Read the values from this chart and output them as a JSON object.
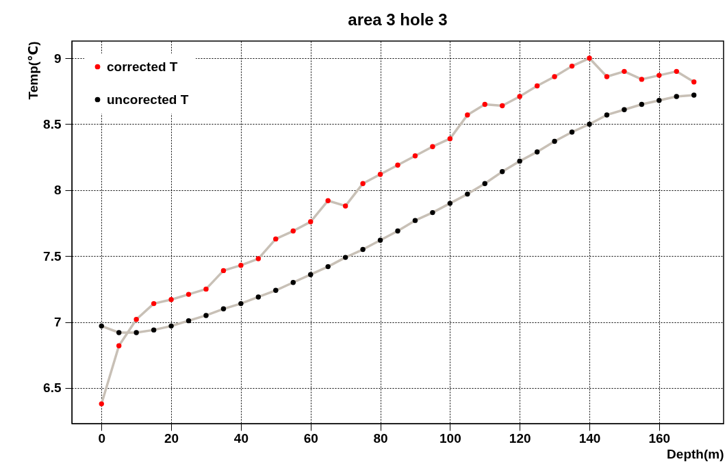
{
  "chart_data": {
    "type": "line",
    "title": "area 3 hole 3",
    "xlabel": "Depth(m)",
    "ylabel": "Temp(℃)",
    "x": [
      0,
      5,
      10,
      15,
      20,
      25,
      30,
      35,
      40,
      45,
      50,
      55,
      60,
      65,
      70,
      75,
      80,
      85,
      90,
      95,
      100,
      105,
      110,
      115,
      120,
      125,
      130,
      135,
      140,
      145,
      150,
      155,
      160,
      165,
      170
    ],
    "series": [
      {
        "name": "corrected T",
        "color": "#ff0000",
        "values": [
          6.38,
          6.82,
          7.02,
          7.14,
          7.17,
          7.21,
          7.25,
          7.39,
          7.43,
          7.48,
          7.63,
          7.69,
          7.76,
          7.92,
          7.88,
          8.05,
          8.12,
          8.19,
          8.26,
          8.33,
          8.39,
          8.57,
          8.65,
          8.64,
          8.71,
          8.79,
          8.86,
          8.94,
          9.0,
          8.86,
          8.9,
          8.84,
          8.87,
          8.9,
          8.82
        ]
      },
      {
        "name": "uncorected T",
        "color": "#000000",
        "values": [
          6.97,
          6.92,
          6.92,
          6.94,
          6.97,
          7.01,
          7.05,
          7.1,
          7.14,
          7.19,
          7.24,
          7.3,
          7.36,
          7.42,
          7.49,
          7.55,
          7.62,
          7.69,
          7.77,
          7.83,
          7.9,
          7.97,
          8.05,
          8.14,
          8.22,
          8.29,
          8.37,
          8.44,
          8.5,
          8.57,
          8.61,
          8.65,
          8.68,
          8.71,
          8.72
        ]
      }
    ],
    "xlim": [
      -8.5,
      178.5
    ],
    "ylim": [
      6.23,
      9.13
    ],
    "xticks": [
      0,
      20,
      40,
      60,
      80,
      100,
      120,
      140,
      160
    ],
    "yticks": [
      6.5,
      7,
      7.5,
      8,
      8.5,
      9
    ],
    "grid": true,
    "legend": "top left",
    "marker": "circle",
    "line_style": "solid"
  }
}
